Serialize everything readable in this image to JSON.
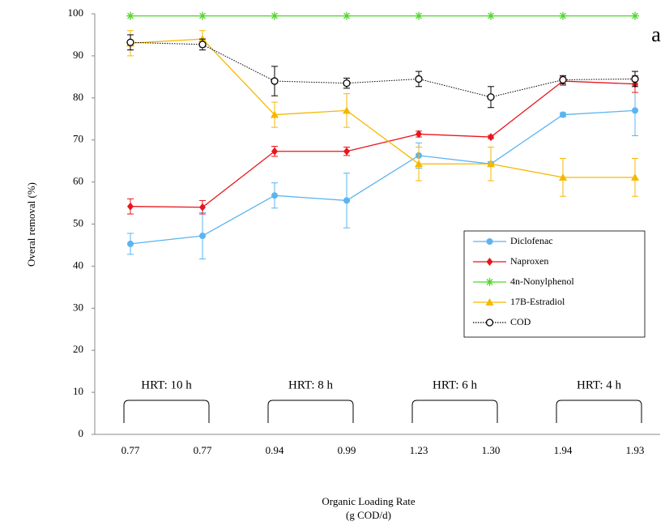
{
  "chart_data": {
    "type": "line",
    "categories": [
      "0.77",
      "0.77",
      "0.94",
      "0.99",
      "1.23",
      "1.30",
      "1.94",
      "1.93"
    ],
    "ylabel": "Overal removal (%)",
    "xlabel": [
      "Organic Loading Rate",
      "(g COD/d)"
    ],
    "ylim": [
      0,
      100
    ],
    "yticks": [
      0,
      10,
      20,
      30,
      40,
      50,
      60,
      70,
      80,
      90,
      100
    ],
    "panel_label": "a",
    "annotations": [
      "HRT: 10 h",
      "HRT: 8 h",
      "HRT: 6 h",
      "HRT: 4 h"
    ],
    "series": [
      {
        "name": "Diclofenac",
        "color": "#5bb4f0",
        "marker": "circle",
        "linestyle": "solid",
        "values": [
          45.3,
          47.2,
          56.8,
          55.6,
          66.3,
          64.3,
          76,
          77
        ],
        "errors": [
          2.5,
          5.5,
          3,
          6.5,
          3,
          0.5,
          0.5,
          6
        ]
      },
      {
        "name": "Naproxen",
        "color": "#e8161c",
        "marker": "diamond",
        "linestyle": "solid",
        "values": [
          54.2,
          54,
          67.3,
          67.3,
          71.4,
          70.7,
          84,
          83.3
        ],
        "errors": [
          1.8,
          1.6,
          1.2,
          1,
          0.7,
          0.4,
          1,
          2
        ]
      },
      {
        "name": "4n-Nonylphenol",
        "color": "#4fd62a",
        "marker": "star",
        "linestyle": "solid",
        "values": [
          99.5,
          99.5,
          99.5,
          99.5,
          99.5,
          99.5,
          99.5,
          99.5
        ],
        "errors": [
          0,
          0,
          0,
          0,
          0,
          0,
          0,
          0
        ]
      },
      {
        "name": "17B-Estradiol",
        "color": "#f5b800",
        "marker": "triangle",
        "linestyle": "solid",
        "values": [
          93,
          94,
          76,
          77,
          64.3,
          64.3,
          61.1,
          61.1
        ],
        "errors": [
          3,
          2,
          3,
          4,
          4,
          4,
          4.5,
          4.5
        ]
      },
      {
        "name": "COD",
        "color": "#000000",
        "marker": "open-circle",
        "linestyle": "dotted",
        "values": [
          93.2,
          92.7,
          84,
          83.5,
          84.5,
          80.2,
          84.3,
          84.5
        ],
        "errors": [
          1.8,
          1.3,
          3.5,
          1.2,
          1.8,
          2.5,
          1,
          1.8
        ]
      }
    ]
  }
}
